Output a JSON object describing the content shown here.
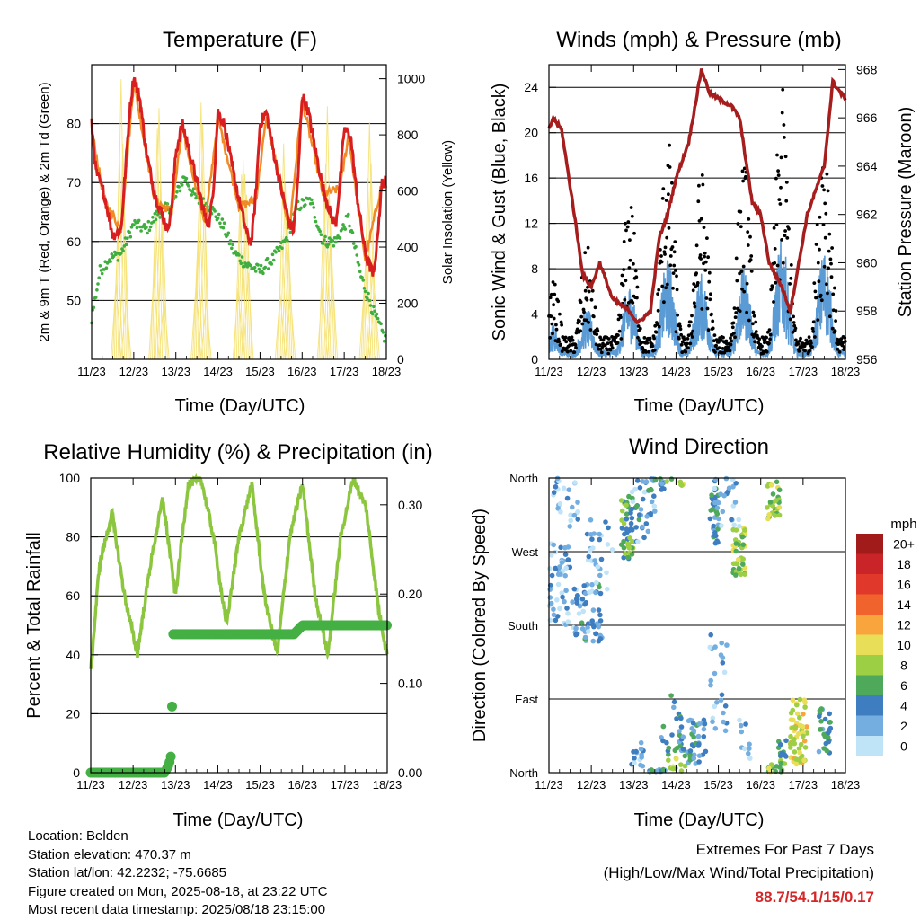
{
  "colors": {
    "temp_2m": "#d81e1e",
    "temp_9m": "#f08a24",
    "dewpoint": "#3fae3f",
    "solar": "#f5e06a",
    "wind": "#5b9bd5",
    "gust": "#000000",
    "pressure": "#a51d1d",
    "rh": "#8cc63f",
    "precip": "#44b044",
    "extremes": "#d62728"
  },
  "x_axis": {
    "ticks": [
      "11/23",
      "12/23",
      "13/23",
      "14/23",
      "15/23",
      "16/23",
      "17/23",
      "18/23"
    ],
    "label": "Time (Day/UTC)"
  },
  "chart_data": [
    {
      "id": "temperature",
      "type": "line",
      "title": "Temperature (F)",
      "xlabel": "Time (Day/UTC)",
      "ylabel": "2m & 9m T (Red, Orange) & 2m Td (Green)",
      "y2label": "Solar Insolation (Yellow)",
      "ylim": [
        40,
        90
      ],
      "y_ticks": [
        50,
        60,
        70,
        80
      ],
      "y2lim": [
        0,
        1050
      ],
      "y2_ticks": [
        0,
        200,
        400,
        600,
        800,
        1000
      ],
      "grid": true,
      "series": [
        {
          "name": "2m T",
          "values_x": [
            0,
            0.1,
            0.3,
            0.5,
            0.7,
            0.8,
            0.9,
            1.0,
            1.15,
            1.3,
            1.5,
            1.7,
            1.8,
            1.9,
            2.0,
            2.15,
            2.3,
            2.5,
            2.7,
            2.8,
            2.9,
            3.0,
            3.15,
            3.3,
            3.5,
            3.7,
            3.8,
            3.9,
            4.0,
            4.15,
            4.3,
            4.5,
            4.7,
            4.8,
            4.9,
            5.0,
            5.15,
            5.3,
            5.5,
            5.7,
            5.8,
            5.9,
            6.0,
            6.15,
            6.3,
            6.5,
            6.7,
            6.8,
            6.9,
            7.0
          ],
          "values": [
            80,
            72,
            68,
            61,
            62,
            72,
            82,
            88,
            84,
            75,
            68,
            64,
            62,
            66,
            75,
            80,
            76,
            70,
            64,
            63,
            70,
            82,
            80,
            74,
            67,
            61,
            60,
            68,
            80,
            82,
            76,
            69,
            63,
            62,
            70,
            85,
            82,
            76,
            69,
            64,
            63,
            70,
            79,
            78,
            68,
            58,
            54,
            62,
            70,
            70
          ]
        },
        {
          "name": "9m T",
          "values_x": [
            0,
            0.3,
            0.7,
            1.0,
            1.5,
            1.9,
            2.15,
            2.7,
            3.0,
            3.5,
            3.9,
            4.15,
            4.7,
            5.0,
            5.5,
            5.9,
            6.1,
            6.5,
            6.9,
            7.0
          ],
          "values": [
            79,
            67,
            62,
            87,
            67,
            65,
            79,
            63,
            81,
            66,
            67,
            81,
            62,
            84,
            68,
            69,
            78,
            57,
            70,
            69
          ]
        },
        {
          "name": "2m Td",
          "values_x": [
            0,
            0.2,
            0.4,
            0.7,
            1.0,
            1.3,
            1.6,
            1.9,
            2.2,
            2.5,
            2.8,
            3.1,
            3.4,
            3.7,
            4.0,
            4.3,
            4.6,
            4.9,
            5.2,
            5.5,
            5.8,
            6.1,
            6.4,
            6.7,
            7.0
          ],
          "values": [
            47,
            55,
            57,
            58,
            63,
            62,
            65,
            66,
            71,
            67,
            66,
            63,
            58,
            56,
            55,
            57,
            60,
            66,
            67,
            60,
            60,
            64,
            54,
            48,
            43
          ]
        },
        {
          "name": "Solar",
          "axis": "y2",
          "peaks_x": [
            0.7,
            1.6,
            2.6,
            3.6,
            4.6,
            5.6,
            6.6
          ],
          "peaks": [
            1000,
            1000,
            1000,
            1000,
            940,
            1000,
            900
          ]
        }
      ]
    },
    {
      "id": "winds",
      "type": "scatter",
      "title": "Winds (mph) & Pressure (mb)",
      "xlabel": "Time (Day/UTC)",
      "ylabel": "Sonic Wind & Gust (Blue, Black)",
      "y2label": "Station Pressure (Maroon)",
      "ylim": [
        0,
        26
      ],
      "y_ticks": [
        0,
        4,
        8,
        12,
        16,
        20,
        24
      ],
      "y2lim": [
        956,
        968.2
      ],
      "y2_ticks": [
        956,
        958,
        960,
        962,
        964,
        966,
        968
      ],
      "grid": true,
      "series": [
        {
          "name": "Sonic Wind",
          "gust_peaks_x": [
            0.1,
            0.9,
            1.9,
            2.8,
            3.6,
            4.6,
            5.5,
            6.5
          ],
          "gust_peaks": [
            7,
            10,
            15,
            20,
            17,
            18,
            24,
            22
          ]
        },
        {
          "name": "Pressure",
          "axis": "y2",
          "values_x": [
            0,
            0.1,
            0.3,
            0.6,
            0.8,
            1.0,
            1.2,
            1.5,
            1.9,
            2.1,
            2.4,
            2.6,
            2.8,
            3.0,
            3.3,
            3.6,
            3.8,
            4.0,
            4.3,
            4.5,
            4.8,
            5.0,
            5.2,
            5.5,
            5.7,
            5.9,
            6.1,
            6.3,
            6.5,
            6.7,
            6.9,
            7.0
          ],
          "values": [
            965.5,
            966,
            965.5,
            962,
            959.5,
            959,
            960,
            958.5,
            958,
            957.5,
            958,
            961,
            962,
            963.5,
            965,
            968,
            967,
            966.8,
            966.5,
            966,
            962.5,
            962,
            960,
            959,
            958,
            960,
            962,
            963,
            964,
            967.5,
            967,
            966.8
          ]
        }
      ]
    },
    {
      "id": "rh_precip",
      "type": "line",
      "title": "Relative Humidity (%) & Precipitation (in)",
      "xlabel": "Time (Day/UTC)",
      "ylabel": "Percent & Total Rainfall",
      "ylim": [
        0,
        100
      ],
      "y_ticks": [
        0,
        20,
        40,
        60,
        80,
        100
      ],
      "y2lim": [
        0,
        0.33
      ],
      "y2_ticks": [
        "0.00",
        "0.10",
        "0.20",
        "0.30"
      ],
      "grid": true,
      "series": [
        {
          "name": "RH",
          "values_x": [
            0,
            0.2,
            0.5,
            0.8,
            1.1,
            1.4,
            1.7,
            2.0,
            2.3,
            2.6,
            2.9,
            3.2,
            3.5,
            3.8,
            4.1,
            4.4,
            4.7,
            5.0,
            5.3,
            5.6,
            5.9,
            6.2,
            6.5,
            6.8,
            7.0
          ],
          "values": [
            34,
            70,
            88,
            60,
            40,
            70,
            93,
            60,
            98,
            100,
            80,
            50,
            80,
            98,
            60,
            40,
            80,
            98,
            60,
            40,
            80,
            100,
            90,
            55,
            40
          ]
        },
        {
          "name": "Precip",
          "values_x": [
            0,
            1.75,
            1.85,
            1.9,
            1.95,
            4.8,
            5.0,
            7.0
          ],
          "values": [
            0,
            0,
            0.01,
            0.02,
            0.155,
            0.155,
            0.165,
            0.165
          ]
        }
      ]
    },
    {
      "id": "wind_direction",
      "type": "scatter",
      "title": "Wind Direction",
      "xlabel": "Time (Day/UTC)",
      "ylabel": "Direction (Colored By Speed)",
      "y_ticks": [
        "North",
        "East",
        "South",
        "West",
        "North"
      ],
      "legend": {
        "title": "mph",
        "labels": [
          "20+",
          "18",
          "16",
          "14",
          "12",
          "10",
          "8",
          "6",
          "4",
          "2",
          "0"
        ],
        "colors": [
          "#a11b1b",
          "#c92427",
          "#e0392b",
          "#f0632d",
          "#f7a53c",
          "#e9de58",
          "#9ccf44",
          "#4fa95a",
          "#3d7dc0",
          "#74aee0",
          "#bfe3f7"
        ],
        "position": "right"
      }
    }
  ],
  "info": {
    "location": "Location: Belden",
    "elevation": "Station elevation: 470.37 m",
    "latlon": "Station lat/lon: 42.2232; -75.6685",
    "created": "Figure created on Mon, 2025-08-18, at 23:22 UTC",
    "recent": "Most recent data timestamp: 2025/08/18 23:15:00"
  },
  "extremes": {
    "title": "Extremes For Past 7 Days",
    "subtitle": "(High/Low/Max Wind/Total Precipitation)",
    "values": "88.7/54.1/15/0.17"
  }
}
